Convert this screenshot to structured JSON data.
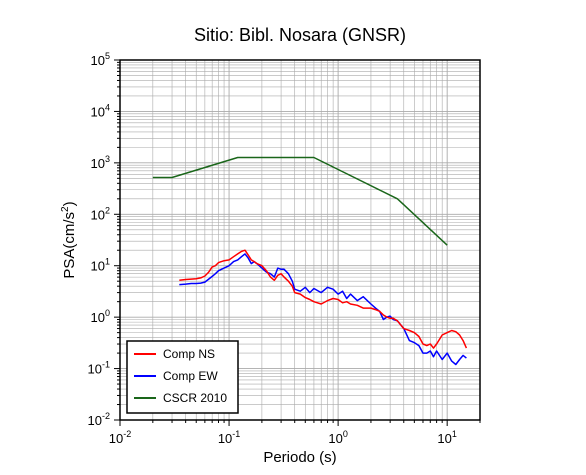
{
  "chart_data": {
    "type": "line",
    "title": "Sitio: Bibl. Nosara (GNSR)",
    "xlabel": "Periodo (s)",
    "ylabel_base": "PSA(cm/s",
    "ylabel_sup": "2",
    "ylabel_close": ")",
    "x_scale": "log",
    "y_scale": "log",
    "xlim": [
      0.01,
      20
    ],
    "ylim": [
      0.01,
      100000
    ],
    "grid": true,
    "legend_position": "bottom-left",
    "x_ticks": [
      {
        "value": 0.01,
        "base": "10",
        "exp": "-2"
      },
      {
        "value": 0.1,
        "base": "10",
        "exp": "-1"
      },
      {
        "value": 1,
        "base": "10",
        "exp": "0"
      },
      {
        "value": 10,
        "base": "10",
        "exp": "1"
      }
    ],
    "y_ticks": [
      {
        "value": 0.01,
        "base": "10",
        "exp": "-2"
      },
      {
        "value": 0.1,
        "base": "10",
        "exp": "-1"
      },
      {
        "value": 1,
        "base": "10",
        "exp": "0"
      },
      {
        "value": 10,
        "base": "10",
        "exp": "1"
      },
      {
        "value": 100,
        "base": "10",
        "exp": "2"
      },
      {
        "value": 1000,
        "base": "10",
        "exp": "3"
      },
      {
        "value": 10000,
        "base": "10",
        "exp": "4"
      },
      {
        "value": 100000,
        "base": "10",
        "exp": "5"
      }
    ],
    "series": [
      {
        "name": "Comp NS",
        "color": "#ff0000",
        "points": [
          [
            0.035,
            5.2
          ],
          [
            0.04,
            5.4
          ],
          [
            0.045,
            5.5
          ],
          [
            0.05,
            5.6
          ],
          [
            0.055,
            5.8
          ],
          [
            0.06,
            6.3
          ],
          [
            0.065,
            7.5
          ],
          [
            0.07,
            9.5
          ],
          [
            0.075,
            10.0
          ],
          [
            0.08,
            11.5
          ],
          [
            0.09,
            12.5
          ],
          [
            0.1,
            13
          ],
          [
            0.11,
            15
          ],
          [
            0.12,
            17
          ],
          [
            0.13,
            19
          ],
          [
            0.14,
            20
          ],
          [
            0.15,
            16
          ],
          [
            0.16,
            13
          ],
          [
            0.17,
            12
          ],
          [
            0.18,
            11
          ],
          [
            0.2,
            10
          ],
          [
            0.22,
            8
          ],
          [
            0.24,
            6
          ],
          [
            0.26,
            5.2
          ],
          [
            0.28,
            6.5
          ],
          [
            0.3,
            7
          ],
          [
            0.32,
            6
          ],
          [
            0.35,
            5
          ],
          [
            0.38,
            4
          ],
          [
            0.4,
            3.0
          ],
          [
            0.45,
            2.8
          ],
          [
            0.5,
            2.4
          ],
          [
            0.55,
            2.2
          ],
          [
            0.6,
            2.0
          ],
          [
            0.7,
            1.8
          ],
          [
            0.8,
            2.1
          ],
          [
            0.9,
            2.3
          ],
          [
            1.0,
            2.2
          ],
          [
            1.1,
            1.9
          ],
          [
            1.2,
            2.0
          ],
          [
            1.3,
            1.8
          ],
          [
            1.5,
            1.7
          ],
          [
            1.7,
            1.5
          ],
          [
            2.0,
            1.5
          ],
          [
            2.2,
            1.4
          ],
          [
            2.4,
            1.3
          ],
          [
            2.6,
            1.1
          ],
          [
            2.8,
            1.0
          ],
          [
            3.0,
            0.95
          ],
          [
            3.2,
            0.95
          ],
          [
            3.5,
            0.85
          ],
          [
            4.0,
            0.6
          ],
          [
            4.5,
            0.55
          ],
          [
            5.0,
            0.5
          ],
          [
            5.5,
            0.42
          ],
          [
            6.0,
            0.3
          ],
          [
            6.5,
            0.28
          ],
          [
            7.0,
            0.3
          ],
          [
            7.5,
            0.25
          ],
          [
            8.0,
            0.3
          ],
          [
            9.0,
            0.45
          ],
          [
            10.0,
            0.5
          ],
          [
            11.0,
            0.55
          ],
          [
            12.0,
            0.52
          ],
          [
            13.0,
            0.45
          ],
          [
            14.0,
            0.35
          ],
          [
            15.0,
            0.25
          ]
        ]
      },
      {
        "name": "Comp EW",
        "color": "#0000ff",
        "points": [
          [
            0.035,
            4.3
          ],
          [
            0.04,
            4.4
          ],
          [
            0.045,
            4.5
          ],
          [
            0.05,
            4.5
          ],
          [
            0.055,
            4.6
          ],
          [
            0.06,
            4.8
          ],
          [
            0.065,
            5.5
          ],
          [
            0.07,
            6.2
          ],
          [
            0.075,
            7.0
          ],
          [
            0.08,
            8.0
          ],
          [
            0.09,
            9.0
          ],
          [
            0.1,
            10
          ],
          [
            0.11,
            12
          ],
          [
            0.12,
            13
          ],
          [
            0.13,
            15
          ],
          [
            0.14,
            17
          ],
          [
            0.15,
            14
          ],
          [
            0.16,
            11
          ],
          [
            0.17,
            12
          ],
          [
            0.18,
            11
          ],
          [
            0.2,
            9
          ],
          [
            0.22,
            7.5
          ],
          [
            0.24,
            7
          ],
          [
            0.26,
            6
          ],
          [
            0.28,
            9
          ],
          [
            0.3,
            8.5
          ],
          [
            0.32,
            8.5
          ],
          [
            0.35,
            7
          ],
          [
            0.38,
            5
          ],
          [
            0.4,
            3.5
          ],
          [
            0.45,
            3.2
          ],
          [
            0.5,
            3.8
          ],
          [
            0.55,
            3.0
          ],
          [
            0.6,
            3.6
          ],
          [
            0.7,
            3.0
          ],
          [
            0.8,
            3.8
          ],
          [
            0.9,
            3.5
          ],
          [
            1.0,
            2.8
          ],
          [
            1.1,
            3.2
          ],
          [
            1.2,
            2.3
          ],
          [
            1.3,
            2.8
          ],
          [
            1.5,
            2.1
          ],
          [
            1.7,
            2.5
          ],
          [
            2.0,
            1.8
          ],
          [
            2.2,
            1.5
          ],
          [
            2.4,
            1.3
          ],
          [
            2.6,
            0.9
          ],
          [
            2.8,
            1.0
          ],
          [
            3.0,
            1.05
          ],
          [
            3.2,
            0.9
          ],
          [
            3.5,
            0.85
          ],
          [
            4.0,
            0.6
          ],
          [
            4.5,
            0.35
          ],
          [
            5.0,
            0.32
          ],
          [
            5.5,
            0.28
          ],
          [
            6.0,
            0.2
          ],
          [
            6.5,
            0.2
          ],
          [
            7.0,
            0.22
          ],
          [
            7.5,
            0.17
          ],
          [
            8.0,
            0.22
          ],
          [
            9.0,
            0.15
          ],
          [
            10.0,
            0.2
          ],
          [
            11.0,
            0.14
          ],
          [
            12.0,
            0.12
          ],
          [
            13.0,
            0.15
          ],
          [
            14.0,
            0.18
          ],
          [
            15.0,
            0.16
          ]
        ]
      },
      {
        "name": "CSCR 2010",
        "color": "#1a661a",
        "points": [
          [
            0.02,
            520
          ],
          [
            0.03,
            520
          ],
          [
            0.12,
            1270
          ],
          [
            0.6,
            1270
          ],
          [
            3.5,
            200
          ],
          [
            10.0,
            25
          ]
        ]
      }
    ]
  }
}
